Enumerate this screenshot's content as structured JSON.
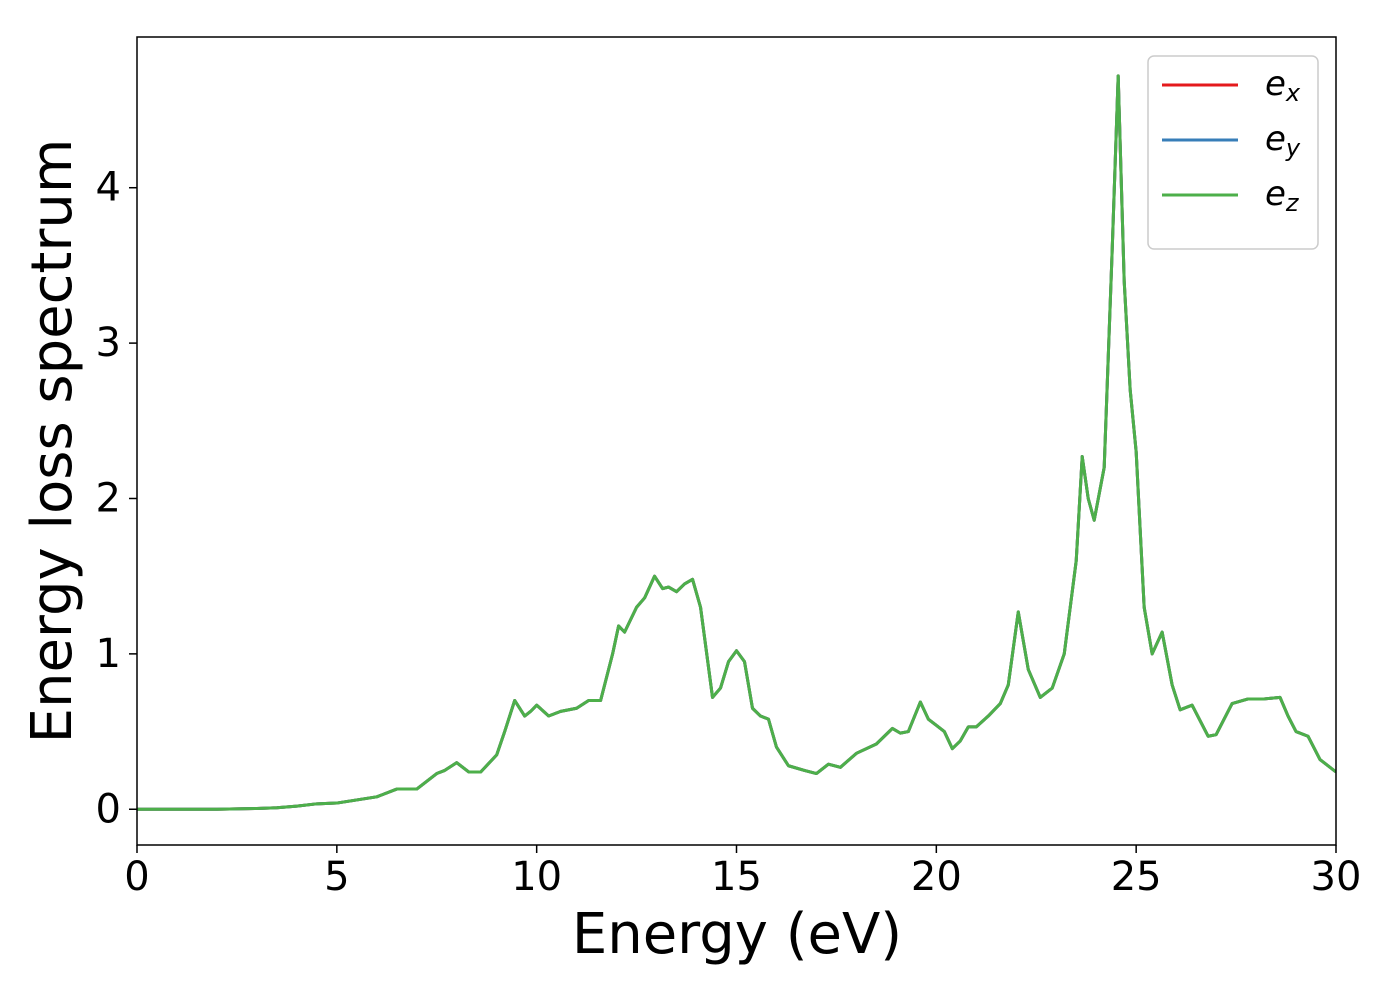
{
  "chart_data": {
    "type": "line",
    "xlabel": "Energy (eV)",
    "ylabel": "Energy loss spectrum",
    "x": [
      0,
      1,
      2,
      3,
      3.5,
      4,
      4.5,
      5,
      5.5,
      6,
      6.5,
      7,
      7.5,
      7.7,
      8,
      8.3,
      8.6,
      9,
      9.2,
      9.45,
      9.7,
      9.85,
      10,
      10.3,
      10.6,
      11,
      11.3,
      11.6,
      11.9,
      12.05,
      12.2,
      12.5,
      12.7,
      12.95,
      13.15,
      13.3,
      13.5,
      13.7,
      13.9,
      14.1,
      14.4,
      14.6,
      14.8,
      15,
      15.2,
      15.4,
      15.6,
      15.8,
      16,
      16.3,
      16.7,
      17,
      17.3,
      17.6,
      18,
      18.5,
      18.9,
      19.1,
      19.3,
      19.6,
      19.8,
      20,
      20.2,
      20.4,
      20.6,
      20.8,
      21,
      21.3,
      21.6,
      21.8,
      22.05,
      22.3,
      22.6,
      22.9,
      23.2,
      23.5,
      23.65,
      23.8,
      23.95,
      24.2,
      24.4,
      24.55,
      24.7,
      24.85,
      25,
      25.2,
      25.4,
      25.65,
      25.9,
      26.1,
      26.4,
      26.8,
      27,
      27.4,
      27.8,
      28.2,
      28.6,
      28.8,
      29,
      29.3,
      29.6,
      30
    ],
    "series": [
      {
        "name": "e_x",
        "color": "#e41a1c",
        "values": [
          0,
          0,
          0,
          0.005,
          0.01,
          0.02,
          0.035,
          0.04,
          0.06,
          0.08,
          0.13,
          0.13,
          0.23,
          0.25,
          0.3,
          0.24,
          0.24,
          0.35,
          0.5,
          0.7,
          0.6,
          0.63,
          0.67,
          0.6,
          0.63,
          0.65,
          0.7,
          0.7,
          1.0,
          1.18,
          1.14,
          1.3,
          1.36,
          1.5,
          1.42,
          1.43,
          1.4,
          1.45,
          1.48,
          1.3,
          0.72,
          0.78,
          0.95,
          1.02,
          0.95,
          0.65,
          0.6,
          0.58,
          0.4,
          0.28,
          0.25,
          0.23,
          0.29,
          0.27,
          0.36,
          0.42,
          0.52,
          0.49,
          0.5,
          0.69,
          0.58,
          0.54,
          0.5,
          0.39,
          0.44,
          0.53,
          0.53,
          0.6,
          0.68,
          0.8,
          1.27,
          0.9,
          0.72,
          0.78,
          1.0,
          1.6,
          2.27,
          2.0,
          1.86,
          2.2,
          3.6,
          4.72,
          3.4,
          2.7,
          2.3,
          1.3,
          1.0,
          1.14,
          0.8,
          0.64,
          0.67,
          0.47,
          0.48,
          0.68,
          0.71,
          0.71,
          0.72,
          0.6,
          0.5,
          0.47,
          0.32,
          0.24
        ]
      },
      {
        "name": "e_y",
        "color": "#377eb8",
        "values": [
          0,
          0,
          0,
          0.005,
          0.01,
          0.02,
          0.035,
          0.04,
          0.06,
          0.08,
          0.13,
          0.13,
          0.23,
          0.25,
          0.3,
          0.24,
          0.24,
          0.35,
          0.5,
          0.7,
          0.6,
          0.63,
          0.67,
          0.6,
          0.63,
          0.65,
          0.7,
          0.7,
          1.0,
          1.18,
          1.14,
          1.3,
          1.36,
          1.5,
          1.42,
          1.43,
          1.4,
          1.45,
          1.48,
          1.3,
          0.72,
          0.78,
          0.95,
          1.02,
          0.95,
          0.65,
          0.6,
          0.58,
          0.4,
          0.28,
          0.25,
          0.23,
          0.29,
          0.27,
          0.36,
          0.42,
          0.52,
          0.49,
          0.5,
          0.69,
          0.58,
          0.54,
          0.5,
          0.39,
          0.44,
          0.53,
          0.53,
          0.6,
          0.68,
          0.8,
          1.27,
          0.9,
          0.72,
          0.78,
          1.0,
          1.6,
          2.27,
          2.0,
          1.86,
          2.2,
          3.6,
          4.72,
          3.4,
          2.7,
          2.3,
          1.3,
          1.0,
          1.14,
          0.8,
          0.64,
          0.67,
          0.47,
          0.48,
          0.68,
          0.71,
          0.71,
          0.72,
          0.6,
          0.5,
          0.47,
          0.32,
          0.24
        ]
      },
      {
        "name": "e_z",
        "color": "#4daf4a",
        "values": [
          0,
          0,
          0,
          0.005,
          0.01,
          0.02,
          0.035,
          0.04,
          0.06,
          0.08,
          0.13,
          0.13,
          0.23,
          0.25,
          0.3,
          0.24,
          0.24,
          0.35,
          0.5,
          0.7,
          0.6,
          0.63,
          0.67,
          0.6,
          0.63,
          0.65,
          0.7,
          0.7,
          1.0,
          1.18,
          1.14,
          1.3,
          1.36,
          1.5,
          1.42,
          1.43,
          1.4,
          1.45,
          1.48,
          1.3,
          0.72,
          0.78,
          0.95,
          1.02,
          0.95,
          0.65,
          0.6,
          0.58,
          0.4,
          0.28,
          0.25,
          0.23,
          0.29,
          0.27,
          0.36,
          0.42,
          0.52,
          0.49,
          0.5,
          0.69,
          0.58,
          0.54,
          0.5,
          0.39,
          0.44,
          0.53,
          0.53,
          0.6,
          0.68,
          0.8,
          1.27,
          0.9,
          0.72,
          0.78,
          1.0,
          1.6,
          2.27,
          2.0,
          1.86,
          2.2,
          3.6,
          4.72,
          3.4,
          2.7,
          2.3,
          1.3,
          1.0,
          1.14,
          0.8,
          0.64,
          0.67,
          0.47,
          0.48,
          0.68,
          0.71,
          0.71,
          0.72,
          0.6,
          0.5,
          0.47,
          0.32,
          0.24
        ]
      }
    ],
    "xlim": [
      0,
      30
    ],
    "xticks": [
      0,
      5,
      10,
      15,
      20,
      25,
      30
    ],
    "ylim": [
      -0.23,
      4.97
    ],
    "yticks": [
      0,
      1,
      2,
      3,
      4
    ],
    "grid": false,
    "legend": "upper right"
  }
}
